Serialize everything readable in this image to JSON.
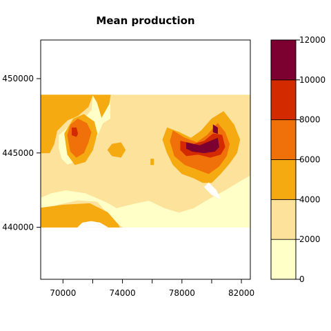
{
  "chart_data": {
    "type": "heatmap",
    "title": "Mean production",
    "xlim": [
      68500,
      82600
    ],
    "ylim": [
      436500,
      452600
    ],
    "x_ticks": [
      70000,
      74000,
      78000,
      82000
    ],
    "x_tick_labels": [
      "70000",
      "74000",
      "78000",
      "82000"
    ],
    "y_ticks": [
      440000,
      445000,
      450000
    ],
    "y_tick_labels": [
      "440000",
      "445000",
      "450000"
    ],
    "data_extent": {
      "x": [
        68500,
        82600
      ],
      "y": [
        440000,
        448900
      ]
    },
    "grid": false,
    "legend": {
      "placement": "right",
      "breaks": [
        0,
        2000,
        4000,
        6000,
        8000,
        10000,
        12000
      ],
      "tick_labels": [
        "0",
        "2000",
        "4000",
        "6000",
        "8000",
        "10000",
        "12000"
      ],
      "colors": [
        "#FFFFC8",
        "#FDE29C",
        "#F6AA12",
        "#F0700A",
        "#D42A00",
        "#7C0030"
      ]
    },
    "regions": [
      {
        "level": 1000,
        "poly": [
          [
            68500,
            440000
          ],
          [
            82600,
            440000
          ],
          [
            82600,
            448900
          ],
          [
            68500,
            448900
          ]
        ]
      },
      {
        "level": 3000,
        "poly": [
          [
            68500,
            448900
          ],
          [
            72000,
            448900
          ],
          [
            71900,
            447900
          ],
          [
            71300,
            447200
          ],
          [
            70400,
            446800
          ],
          [
            69700,
            446200
          ],
          [
            69700,
            445300
          ],
          [
            69900,
            444600
          ],
          [
            70300,
            444200
          ],
          [
            70800,
            444400
          ],
          [
            71500,
            444700
          ],
          [
            72000,
            445400
          ],
          [
            72400,
            446300
          ],
          [
            72700,
            447000
          ],
          [
            73200,
            447300
          ],
          [
            73200,
            448900
          ],
          [
            82600,
            448900
          ],
          [
            82600,
            443500
          ],
          [
            81900,
            443100
          ],
          [
            80900,
            442500
          ],
          [
            79800,
            441900
          ],
          [
            78800,
            441300
          ],
          [
            77800,
            441000
          ],
          [
            76800,
            441300
          ],
          [
            75800,
            441800
          ],
          [
            74800,
            441600
          ],
          [
            73600,
            441300
          ],
          [
            72900,
            441700
          ],
          [
            71500,
            442300
          ],
          [
            70200,
            442500
          ],
          [
            69200,
            442300
          ],
          [
            68500,
            442000
          ]
        ]
      },
      {
        "level": 3000,
        "poly": [
          [
            68500,
            441000
          ],
          [
            69700,
            441500
          ],
          [
            71000,
            441800
          ],
          [
            72300,
            441700
          ],
          [
            72900,
            441000
          ],
          [
            73600,
            440300
          ],
          [
            74000,
            440000
          ],
          [
            68500,
            440000
          ]
        ]
      },
      {
        "level": 3000,
        "poly": [
          [
            75800,
            448200
          ],
          [
            76500,
            447500
          ],
          [
            76700,
            446600
          ],
          [
            76200,
            446000
          ],
          [
            75400,
            446000
          ],
          [
            75000,
            446500
          ],
          [
            75100,
            447600
          ]
        ]
      },
      {
        "level": 5000,
        "poly": [
          [
            68500,
            448900
          ],
          [
            72000,
            448900
          ],
          [
            71700,
            448100
          ],
          [
            71000,
            447500
          ],
          [
            70300,
            447200
          ],
          [
            69600,
            446500
          ],
          [
            69400,
            445600
          ],
          [
            69100,
            445000
          ],
          [
            68500,
            445000
          ]
        ]
      },
      {
        "level": 5000,
        "poly": [
          [
            72000,
            448900
          ],
          [
            73200,
            448900
          ],
          [
            73100,
            448300
          ],
          [
            72600,
            447400
          ],
          [
            72300,
            448400
          ]
        ]
      },
      {
        "level": 5000,
        "poly": [
          [
            70100,
            446300
          ],
          [
            70300,
            444900
          ],
          [
            70800,
            444200
          ],
          [
            71500,
            444400
          ],
          [
            72000,
            445200
          ],
          [
            72300,
            446300
          ],
          [
            72100,
            447100
          ],
          [
            71400,
            447600
          ],
          [
            70700,
            447300
          ]
        ]
      },
      {
        "level": 5000,
        "poly": [
          [
            77000,
            446700
          ],
          [
            77800,
            446400
          ],
          [
            78600,
            446000
          ],
          [
            79300,
            446500
          ],
          [
            80000,
            447300
          ],
          [
            80800,
            447800
          ],
          [
            81500,
            446900
          ],
          [
            81900,
            445900
          ],
          [
            81700,
            445000
          ],
          [
            81200,
            444300
          ],
          [
            80600,
            443600
          ],
          [
            80000,
            443000
          ],
          [
            79400,
            443000
          ],
          [
            78800,
            443300
          ],
          [
            78000,
            443600
          ],
          [
            77400,
            444200
          ],
          [
            77000,
            445000
          ],
          [
            76700,
            445900
          ]
        ]
      },
      {
        "level": 5000,
        "poly": [
          [
            68500,
            441300
          ],
          [
            70000,
            441500
          ],
          [
            71800,
            441600
          ],
          [
            73000,
            441000
          ],
          [
            73700,
            440200
          ],
          [
            73800,
            440000
          ],
          [
            68500,
            440000
          ]
        ]
      },
      {
        "level": 5000,
        "poly": [
          [
            73300,
            445600
          ],
          [
            73900,
            445700
          ],
          [
            74200,
            445200
          ],
          [
            73900,
            444700
          ],
          [
            73300,
            444800
          ],
          [
            73000,
            445200
          ]
        ]
      },
      {
        "level": 5000,
        "poly": [
          [
            75900,
            444600
          ],
          [
            76100,
            444600
          ],
          [
            76100,
            444200
          ],
          [
            75900,
            444200
          ]
        ]
      },
      {
        "level": 7000,
        "poly": [
          [
            70300,
            446200
          ],
          [
            70500,
            445100
          ],
          [
            70900,
            444700
          ],
          [
            71400,
            445000
          ],
          [
            71700,
            445700
          ],
          [
            71900,
            446400
          ],
          [
            71600,
            447000
          ],
          [
            71000,
            447300
          ],
          [
            70500,
            446900
          ]
        ]
      },
      {
        "level": 7000,
        "poly": [
          [
            77400,
            446500
          ],
          [
            78200,
            446000
          ],
          [
            79000,
            445700
          ],
          [
            79700,
            446200
          ],
          [
            80400,
            447000
          ],
          [
            80900,
            446400
          ],
          [
            81200,
            445600
          ],
          [
            81000,
            444800
          ],
          [
            80500,
            444100
          ],
          [
            79800,
            443600
          ],
          [
            79000,
            443900
          ],
          [
            78200,
            444200
          ],
          [
            77500,
            444800
          ],
          [
            77200,
            445800
          ]
        ]
      },
      {
        "level": 9000,
        "poly": [
          [
            77900,
            445800
          ],
          [
            78800,
            445600
          ],
          [
            79500,
            445800
          ],
          [
            80100,
            446300
          ],
          [
            80700,
            446200
          ],
          [
            80900,
            445400
          ],
          [
            80600,
            444900
          ],
          [
            79900,
            444700
          ],
          [
            79100,
            444900
          ],
          [
            78300,
            444800
          ],
          [
            77900,
            445200
          ]
        ]
      },
      {
        "level": 9000,
        "poly": [
          [
            70600,
            446700
          ],
          [
            70900,
            446700
          ],
          [
            71000,
            446300
          ],
          [
            70900,
            446100
          ],
          [
            70600,
            446200
          ]
        ]
      },
      {
        "level": 11000,
        "poly": [
          [
            78300,
            445700
          ],
          [
            79200,
            445500
          ],
          [
            79900,
            445800
          ],
          [
            80400,
            446000
          ],
          [
            80500,
            445400
          ],
          [
            80200,
            445100
          ],
          [
            79500,
            445000
          ],
          [
            78700,
            445100
          ],
          [
            78300,
            445300
          ]
        ]
      },
      {
        "level": 11000,
        "poly": [
          [
            80100,
            446900
          ],
          [
            80400,
            446700
          ],
          [
            80400,
            446300
          ],
          [
            80100,
            446400
          ]
        ]
      }
    ],
    "blanks": [
      [
        [
          79500,
          442700
        ],
        [
          80000,
          442200
        ],
        [
          80600,
          441900
        ],
        [
          80300,
          442500
        ],
        [
          79800,
          443000
        ]
      ],
      [
        [
          71000,
          440000
        ],
        [
          71300,
          440300
        ],
        [
          71900,
          440400
        ],
        [
          72500,
          440300
        ],
        [
          73000,
          440000
        ]
      ]
    ]
  }
}
